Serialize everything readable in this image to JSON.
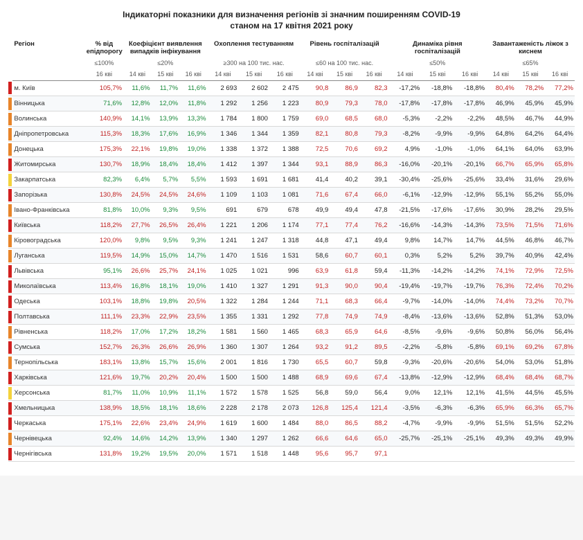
{
  "title": "Індикаторні показники для визначення регіонів зі значним поширенням COVID-19",
  "subtitle": "станом на 17 квітня 2021 року",
  "colors": {
    "red": "#d1201f",
    "orange": "#e8852a",
    "yellow": "#f4d23c"
  },
  "thresholds": {
    "pct": "≤100%",
    "coef": "≤20%",
    "test": "≥300 на 100 тис. нас.",
    "hosp": "≤60 на 100 тис. нас.",
    "dyn": "≤50%",
    "bed": "≤65%"
  },
  "group_headers": {
    "region": "Регіон",
    "pct": "% від епідпорогу",
    "coef": "Коефіцієнт виявлення випадків інфікування",
    "test": "Охоплення тестуванням",
    "hosp": "Рівень госпіталізацій",
    "dyn": "Динаміка рівня госпіталізацій",
    "bed": "Завантаженість ліжок з киснем"
  },
  "date_labels": {
    "d14": "14 кві",
    "d15": "15 кві",
    "d16": "16 кві"
  },
  "value_colors": {
    "pct_ok": "green",
    "pct_bad": "red",
    "coef_ok": "green",
    "coef_bad": "red",
    "hosp_ok": "",
    "hosp_bad": "red",
    "bed_ok": "",
    "bed_bad": "red"
  },
  "rows": [
    {
      "zone": "red",
      "region": "м. Київ",
      "pct": "105,7%",
      "pct_bad": true,
      "k": [
        "11,6%",
        "11,7%",
        "11,6%"
      ],
      "k_bad": [
        false,
        false,
        false
      ],
      "t": [
        "2 693",
        "2 602",
        "2 475"
      ],
      "h": [
        "90,8",
        "86,9",
        "82,3"
      ],
      "h_bad": [
        true,
        true,
        true
      ],
      "d": [
        "-17,2%",
        "-18,8%",
        "-18,8%"
      ],
      "b": [
        "80,4%",
        "78,2%",
        "77,2%"
      ],
      "b_bad": [
        true,
        true,
        true
      ]
    },
    {
      "zone": "orange",
      "region": "Вінницька",
      "pct": "71,6%",
      "pct_bad": false,
      "k": [
        "12,8%",
        "12,0%",
        "11,8%"
      ],
      "k_bad": [
        false,
        false,
        false
      ],
      "t": [
        "1 292",
        "1 256",
        "1 223"
      ],
      "h": [
        "80,9",
        "79,3",
        "78,0"
      ],
      "h_bad": [
        true,
        true,
        true
      ],
      "d": [
        "-17,8%",
        "-17,8%",
        "-17,8%"
      ],
      "b": [
        "46,9%",
        "45,9%",
        "45,9%"
      ],
      "b_bad": [
        false,
        false,
        false
      ]
    },
    {
      "zone": "orange",
      "region": "Волинська",
      "pct": "140,9%",
      "pct_bad": true,
      "k": [
        "14,1%",
        "13,9%",
        "13,3%"
      ],
      "k_bad": [
        false,
        false,
        false
      ],
      "t": [
        "1 784",
        "1 800",
        "1 759"
      ],
      "h": [
        "69,0",
        "68,5",
        "68,0"
      ],
      "h_bad": [
        true,
        true,
        true
      ],
      "d": [
        "-5,3%",
        "-2,2%",
        "-2,2%"
      ],
      "b": [
        "48,5%",
        "46,7%",
        "44,9%"
      ],
      "b_bad": [
        false,
        false,
        false
      ]
    },
    {
      "zone": "orange",
      "region": "Дніпропетровська",
      "pct": "115,3%",
      "pct_bad": true,
      "k": [
        "18,3%",
        "17,6%",
        "16,9%"
      ],
      "k_bad": [
        false,
        false,
        false
      ],
      "t": [
        "1 346",
        "1 344",
        "1 359"
      ],
      "h": [
        "82,1",
        "80,8",
        "79,3"
      ],
      "h_bad": [
        true,
        true,
        true
      ],
      "d": [
        "-8,2%",
        "-9,9%",
        "-9,9%"
      ],
      "b": [
        "64,8%",
        "64,2%",
        "64,4%"
      ],
      "b_bad": [
        false,
        false,
        false
      ]
    },
    {
      "zone": "orange",
      "region": "Донецька",
      "pct": "175,3%",
      "pct_bad": true,
      "k": [
        "22,1%",
        "19,8%",
        "19,0%"
      ],
      "k_bad": [
        true,
        false,
        false
      ],
      "t": [
        "1 338",
        "1 372",
        "1 388"
      ],
      "h": [
        "72,5",
        "70,6",
        "69,2"
      ],
      "h_bad": [
        true,
        true,
        true
      ],
      "d": [
        "4,9%",
        "-1,0%",
        "-1,0%"
      ],
      "b": [
        "64,1%",
        "64,0%",
        "63,9%"
      ],
      "b_bad": [
        false,
        false,
        false
      ]
    },
    {
      "zone": "red",
      "region": "Житомирська",
      "pct": "130,7%",
      "pct_bad": true,
      "k": [
        "18,9%",
        "18,4%",
        "18,4%"
      ],
      "k_bad": [
        false,
        false,
        false
      ],
      "t": [
        "1 412",
        "1 397",
        "1 344"
      ],
      "h": [
        "93,1",
        "88,9",
        "86,3"
      ],
      "h_bad": [
        true,
        true,
        true
      ],
      "d": [
        "-16,0%",
        "-20,1%",
        "-20,1%"
      ],
      "b": [
        "66,7%",
        "65,9%",
        "65,8%"
      ],
      "b_bad": [
        true,
        true,
        true
      ]
    },
    {
      "zone": "yellow",
      "region": "Закарпатська",
      "pct": "82,3%",
      "pct_bad": false,
      "k": [
        "6,4%",
        "5,7%",
        "5,5%"
      ],
      "k_bad": [
        false,
        false,
        false
      ],
      "t": [
        "1 593",
        "1 691",
        "1 681"
      ],
      "h": [
        "41,4",
        "40,2",
        "39,1"
      ],
      "h_bad": [
        false,
        false,
        false
      ],
      "d": [
        "-30,4%",
        "-25,6%",
        "-25,6%"
      ],
      "b": [
        "33,4%",
        "31,6%",
        "29,6%"
      ],
      "b_bad": [
        false,
        false,
        false
      ]
    },
    {
      "zone": "red",
      "region": "Запорізька",
      "pct": "130,8%",
      "pct_bad": true,
      "k": [
        "24,5%",
        "24,5%",
        "24,6%"
      ],
      "k_bad": [
        true,
        true,
        true
      ],
      "t": [
        "1 109",
        "1 103",
        "1 081"
      ],
      "h": [
        "71,6",
        "67,4",
        "66,0"
      ],
      "h_bad": [
        true,
        true,
        true
      ],
      "d": [
        "-6,1%",
        "-12,9%",
        "-12,9%"
      ],
      "b": [
        "55,1%",
        "55,2%",
        "55,0%"
      ],
      "b_bad": [
        false,
        false,
        false
      ]
    },
    {
      "zone": "orange",
      "region": "Івано-Франківська",
      "pct": "81,8%",
      "pct_bad": false,
      "k": [
        "10,0%",
        "9,3%",
        "9,5%"
      ],
      "k_bad": [
        false,
        false,
        false
      ],
      "t": [
        "691",
        "679",
        "678"
      ],
      "h": [
        "49,9",
        "49,4",
        "47,8"
      ],
      "h_bad": [
        false,
        false,
        false
      ],
      "d": [
        "-21,5%",
        "-17,6%",
        "-17,6%"
      ],
      "b": [
        "30,9%",
        "28,2%",
        "29,5%"
      ],
      "b_bad": [
        false,
        false,
        false
      ]
    },
    {
      "zone": "red",
      "region": "Київська",
      "pct": "118,2%",
      "pct_bad": true,
      "k": [
        "27,7%",
        "26,5%",
        "26,4%"
      ],
      "k_bad": [
        true,
        true,
        true
      ],
      "t": [
        "1 221",
        "1 206",
        "1 174"
      ],
      "h": [
        "77,1",
        "77,4",
        "76,2"
      ],
      "h_bad": [
        true,
        true,
        true
      ],
      "d": [
        "-16,6%",
        "-14,3%",
        "-14,3%"
      ],
      "b": [
        "73,5%",
        "71,5%",
        "71,6%"
      ],
      "b_bad": [
        true,
        true,
        true
      ]
    },
    {
      "zone": "orange",
      "region": "Кіровоградська",
      "pct": "120,0%",
      "pct_bad": true,
      "k": [
        "9,8%",
        "9,5%",
        "9,3%"
      ],
      "k_bad": [
        false,
        false,
        false
      ],
      "t": [
        "1 241",
        "1 247",
        "1 318"
      ],
      "h": [
        "44,8",
        "47,1",
        "49,4"
      ],
      "h_bad": [
        false,
        false,
        false
      ],
      "d": [
        "9,8%",
        "14,7%",
        "14,7%"
      ],
      "b": [
        "44,5%",
        "46,8%",
        "46,7%"
      ],
      "b_bad": [
        false,
        false,
        false
      ]
    },
    {
      "zone": "orange",
      "region": "Луганська",
      "pct": "119,5%",
      "pct_bad": true,
      "k": [
        "14,9%",
        "15,0%",
        "14,7%"
      ],
      "k_bad": [
        false,
        false,
        false
      ],
      "t": [
        "1 470",
        "1 516",
        "1 531"
      ],
      "h": [
        "58,6",
        "60,7",
        "60,1"
      ],
      "h_bad": [
        false,
        true,
        true
      ],
      "d": [
        "0,3%",
        "5,2%",
        "5,2%"
      ],
      "b": [
        "39,7%",
        "40,9%",
        "42,4%"
      ],
      "b_bad": [
        false,
        false,
        false
      ]
    },
    {
      "zone": "red",
      "region": "Львівська",
      "pct": "95,1%",
      "pct_bad": false,
      "k": [
        "26,6%",
        "25,7%",
        "24,1%"
      ],
      "k_bad": [
        true,
        true,
        true
      ],
      "t": [
        "1 025",
        "1 021",
        "996"
      ],
      "h": [
        "63,9",
        "61,8",
        "59,4"
      ],
      "h_bad": [
        true,
        true,
        false
      ],
      "d": [
        "-11,3%",
        "-14,2%",
        "-14,2%"
      ],
      "b": [
        "74,1%",
        "72,9%",
        "72,5%"
      ],
      "b_bad": [
        true,
        true,
        true
      ]
    },
    {
      "zone": "red",
      "region": "Миколаївська",
      "pct": "113,4%",
      "pct_bad": true,
      "k": [
        "16,8%",
        "18,1%",
        "19,0%"
      ],
      "k_bad": [
        false,
        false,
        false
      ],
      "t": [
        "1 410",
        "1 327",
        "1 291"
      ],
      "h": [
        "91,3",
        "90,0",
        "90,4"
      ],
      "h_bad": [
        true,
        true,
        true
      ],
      "d": [
        "-19,4%",
        "-19,7%",
        "-19,7%"
      ],
      "b": [
        "76,3%",
        "72,4%",
        "70,2%"
      ],
      "b_bad": [
        true,
        true,
        true
      ]
    },
    {
      "zone": "red",
      "region": "Одеська",
      "pct": "103,1%",
      "pct_bad": true,
      "k": [
        "18,8%",
        "19,8%",
        "20,5%"
      ],
      "k_bad": [
        false,
        false,
        true
      ],
      "t": [
        "1 322",
        "1 284",
        "1 244"
      ],
      "h": [
        "71,1",
        "68,3",
        "66,4"
      ],
      "h_bad": [
        true,
        true,
        true
      ],
      "d": [
        "-9,7%",
        "-14,0%",
        "-14,0%"
      ],
      "b": [
        "74,4%",
        "73,2%",
        "70,7%"
      ],
      "b_bad": [
        true,
        true,
        true
      ]
    },
    {
      "zone": "red",
      "region": "Полтавська",
      "pct": "111,1%",
      "pct_bad": true,
      "k": [
        "23,3%",
        "22,9%",
        "23,5%"
      ],
      "k_bad": [
        true,
        true,
        true
      ],
      "t": [
        "1 355",
        "1 331",
        "1 292"
      ],
      "h": [
        "77,8",
        "74,9",
        "74,9"
      ],
      "h_bad": [
        true,
        true,
        true
      ],
      "d": [
        "-8,4%",
        "-13,6%",
        "-13,6%"
      ],
      "b": [
        "52,8%",
        "51,3%",
        "53,0%"
      ],
      "b_bad": [
        false,
        false,
        false
      ]
    },
    {
      "zone": "orange",
      "region": "Рівненська",
      "pct": "118,2%",
      "pct_bad": true,
      "k": [
        "17,0%",
        "17,2%",
        "18,2%"
      ],
      "k_bad": [
        false,
        false,
        false
      ],
      "t": [
        "1 581",
        "1 560",
        "1 465"
      ],
      "h": [
        "68,3",
        "65,9",
        "64,6"
      ],
      "h_bad": [
        true,
        true,
        true
      ],
      "d": [
        "-8,5%",
        "-9,6%",
        "-9,6%"
      ],
      "b": [
        "50,8%",
        "56,0%",
        "56,4%"
      ],
      "b_bad": [
        false,
        false,
        false
      ]
    },
    {
      "zone": "red",
      "region": "Сумська",
      "pct": "152,7%",
      "pct_bad": true,
      "k": [
        "26,3%",
        "26,6%",
        "26,9%"
      ],
      "k_bad": [
        true,
        true,
        true
      ],
      "t": [
        "1 360",
        "1 307",
        "1 264"
      ],
      "h": [
        "93,2",
        "91,2",
        "89,5"
      ],
      "h_bad": [
        true,
        true,
        true
      ],
      "d": [
        "-2,2%",
        "-5,8%",
        "-5,8%"
      ],
      "b": [
        "69,1%",
        "69,2%",
        "67,8%"
      ],
      "b_bad": [
        true,
        true,
        true
      ]
    },
    {
      "zone": "orange",
      "region": "Тернопільська",
      "pct": "183,1%",
      "pct_bad": true,
      "k": [
        "13,8%",
        "15,7%",
        "15,6%"
      ],
      "k_bad": [
        false,
        false,
        false
      ],
      "t": [
        "2 001",
        "1 816",
        "1 730"
      ],
      "h": [
        "65,5",
        "60,7",
        "59,8"
      ],
      "h_bad": [
        true,
        true,
        false
      ],
      "d": [
        "-9,3%",
        "-20,6%",
        "-20,6%"
      ],
      "b": [
        "54,0%",
        "53,0%",
        "51,8%"
      ],
      "b_bad": [
        false,
        false,
        false
      ]
    },
    {
      "zone": "red",
      "region": "Харківська",
      "pct": "121,6%",
      "pct_bad": true,
      "k": [
        "19,7%",
        "20,2%",
        "20,4%"
      ],
      "k_bad": [
        false,
        true,
        true
      ],
      "t": [
        "1 500",
        "1 500",
        "1 488"
      ],
      "h": [
        "68,9",
        "69,6",
        "67,4"
      ],
      "h_bad": [
        true,
        true,
        true
      ],
      "d": [
        "-13,8%",
        "-12,9%",
        "-12,9%"
      ],
      "b": [
        "68,4%",
        "68,4%",
        "68,7%"
      ],
      "b_bad": [
        true,
        true,
        true
      ]
    },
    {
      "zone": "yellow",
      "region": "Херсонська",
      "pct": "81,7%",
      "pct_bad": false,
      "k": [
        "11,0%",
        "10,9%",
        "11,1%"
      ],
      "k_bad": [
        false,
        false,
        false
      ],
      "t": [
        "1 572",
        "1 578",
        "1 525"
      ],
      "h": [
        "56,8",
        "59,0",
        "56,4"
      ],
      "h_bad": [
        false,
        false,
        false
      ],
      "d": [
        "9,0%",
        "12,1%",
        "12,1%"
      ],
      "b": [
        "41,5%",
        "44,5%",
        "45,5%"
      ],
      "b_bad": [
        false,
        false,
        false
      ]
    },
    {
      "zone": "red",
      "region": "Хмельницька",
      "pct": "138,9%",
      "pct_bad": true,
      "k": [
        "18,5%",
        "18,1%",
        "18,6%"
      ],
      "k_bad": [
        false,
        false,
        false
      ],
      "t": [
        "2 228",
        "2 178",
        "2 073"
      ],
      "h": [
        "126,8",
        "125,4",
        "121,4"
      ],
      "h_bad": [
        true,
        true,
        true
      ],
      "d": [
        "-3,5%",
        "-6,3%",
        "-6,3%"
      ],
      "b": [
        "65,9%",
        "66,3%",
        "65,7%"
      ],
      "b_bad": [
        true,
        true,
        true
      ]
    },
    {
      "zone": "red",
      "region": "Черкаська",
      "pct": "175,1%",
      "pct_bad": true,
      "k": [
        "22,6%",
        "23,4%",
        "24,9%"
      ],
      "k_bad": [
        true,
        true,
        true
      ],
      "t": [
        "1 619",
        "1 600",
        "1 484"
      ],
      "h": [
        "88,0",
        "86,5",
        "88,2"
      ],
      "h_bad": [
        true,
        true,
        true
      ],
      "d": [
        "-4,7%",
        "-9,9%",
        "-9,9%"
      ],
      "b": [
        "51,5%",
        "51,5%",
        "52,2%"
      ],
      "b_bad": [
        false,
        false,
        false
      ]
    },
    {
      "zone": "orange",
      "region": "Чернівецька",
      "pct": "92,4%",
      "pct_bad": false,
      "k": [
        "14,6%",
        "14,2%",
        "13,9%"
      ],
      "k_bad": [
        false,
        false,
        false
      ],
      "t": [
        "1 340",
        "1 297",
        "1 262"
      ],
      "h": [
        "66,6",
        "64,6",
        "65,0"
      ],
      "h_bad": [
        true,
        true,
        true
      ],
      "d": [
        "-25,7%",
        "-25,1%",
        "-25,1%"
      ],
      "b": [
        "49,3%",
        "49,3%",
        "49,9%"
      ],
      "b_bad": [
        false,
        false,
        false
      ]
    },
    {
      "zone": "red",
      "region": "Чернігівська",
      "pct": "131,8%",
      "pct_bad": true,
      "k": [
        "19,2%",
        "19,5%",
        "20,0%"
      ],
      "k_bad": [
        false,
        false,
        false
      ],
      "t": [
        "1 571",
        "1 518",
        "1 448"
      ],
      "h": [
        "95,6",
        "95,7",
        "97,1"
      ],
      "h_bad": [
        true,
        true,
        true
      ],
      "d": [
        "",
        "",
        ""
      ],
      "b": [
        "",
        "",
        ""
      ],
      "b_bad": [
        false,
        false,
        false
      ]
    }
  ]
}
